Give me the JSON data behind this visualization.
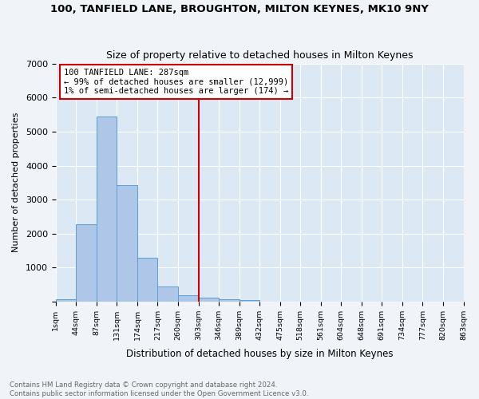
{
  "title1": "100, TANFIELD LANE, BROUGHTON, MILTON KEYNES, MK10 9NY",
  "title2": "Size of property relative to detached houses in Milton Keynes",
  "xlabel": "Distribution of detached houses by size in Milton Keynes",
  "ylabel": "Number of detached properties",
  "footnote": "Contains HM Land Registry data © Crown copyright and database right 2024.\nContains public sector information licensed under the Open Government Licence v3.0.",
  "bin_labels": [
    "1sqm",
    "44sqm",
    "87sqm",
    "131sqm",
    "174sqm",
    "217sqm",
    "260sqm",
    "303sqm",
    "346sqm",
    "389sqm",
    "432sqm",
    "475sqm",
    "518sqm",
    "561sqm",
    "604sqm",
    "648sqm",
    "691sqm",
    "734sqm",
    "777sqm",
    "820sqm",
    "863sqm"
  ],
  "bar_values": [
    70,
    2280,
    5450,
    3420,
    1290,
    430,
    175,
    105,
    65,
    30,
    0,
    0,
    0,
    0,
    0,
    0,
    0,
    0,
    0,
    0
  ],
  "bar_color": "#aec6e8",
  "bar_edge_color": "#5a9fd4",
  "vline_x": 6.5,
  "vline_color": "#cc0000",
  "annotation_text": "100 TANFIELD LANE: 287sqm\n← 99% of detached houses are smaller (12,999)\n1% of semi-detached houses are larger (174) →",
  "annotation_box_color": "#ffffff",
  "annotation_box_edge": "#cc0000",
  "ylim": [
    0,
    7000
  ],
  "fig_bg_color": "#f0f4f8",
  "plot_bg_color": "#dce9f5",
  "footnote_color": "#666666"
}
